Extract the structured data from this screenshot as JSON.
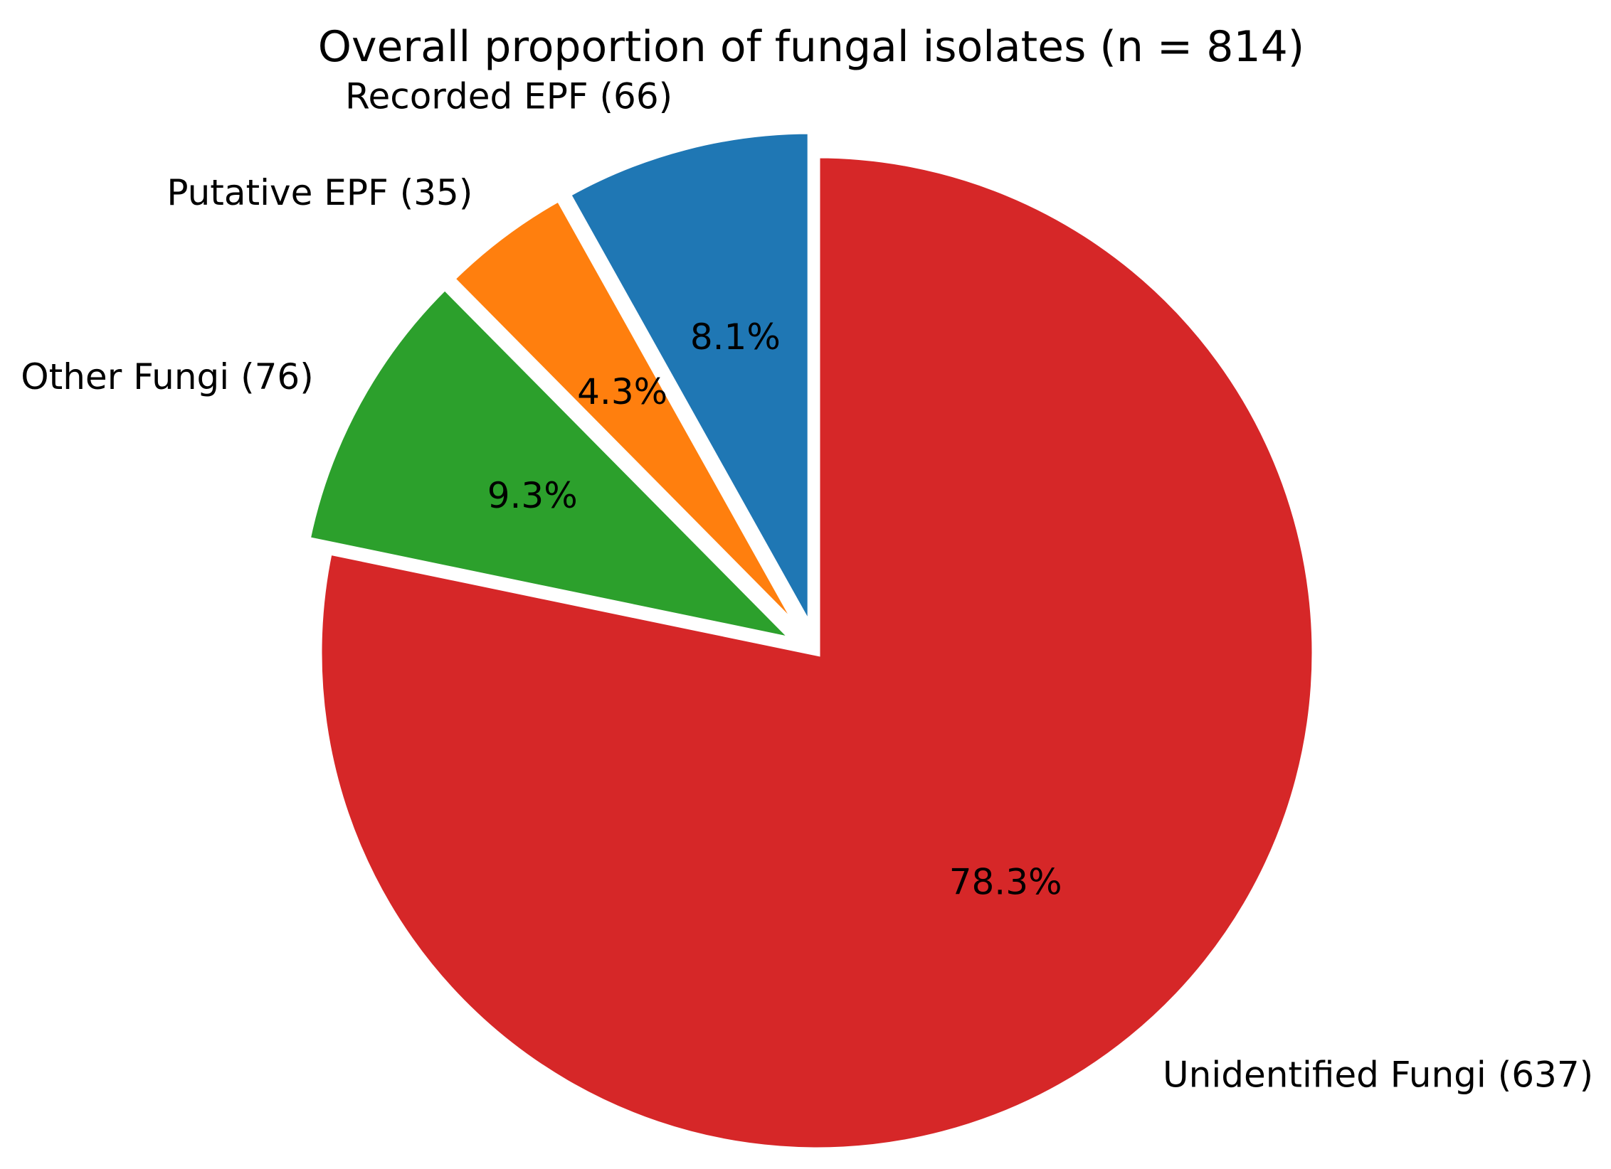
{
  "chart_data": {
    "type": "pie",
    "title": "Overall proportion of fungal isolates (n = 814)",
    "start_angle_deg": 90,
    "direction": "counterclockwise",
    "slices": [
      {
        "label": "Recorded EPF (66)",
        "value": 66,
        "pct_label": "8.1%",
        "color": "#1f77b4",
        "explode": 0.05
      },
      {
        "label": "Putative EPF (35)",
        "value": 35,
        "pct_label": "4.3%",
        "color": "#ff7f0e",
        "explode": 0.05
      },
      {
        "label": "Other Fungi (76)",
        "value": 76,
        "pct_label": "9.3%",
        "color": "#2ca02c",
        "explode": 0.05
      },
      {
        "label": "Unidentified Fungi (637)",
        "value": 637,
        "pct_label": "78.3%",
        "color": "#d62728",
        "explode": 0
      }
    ]
  }
}
